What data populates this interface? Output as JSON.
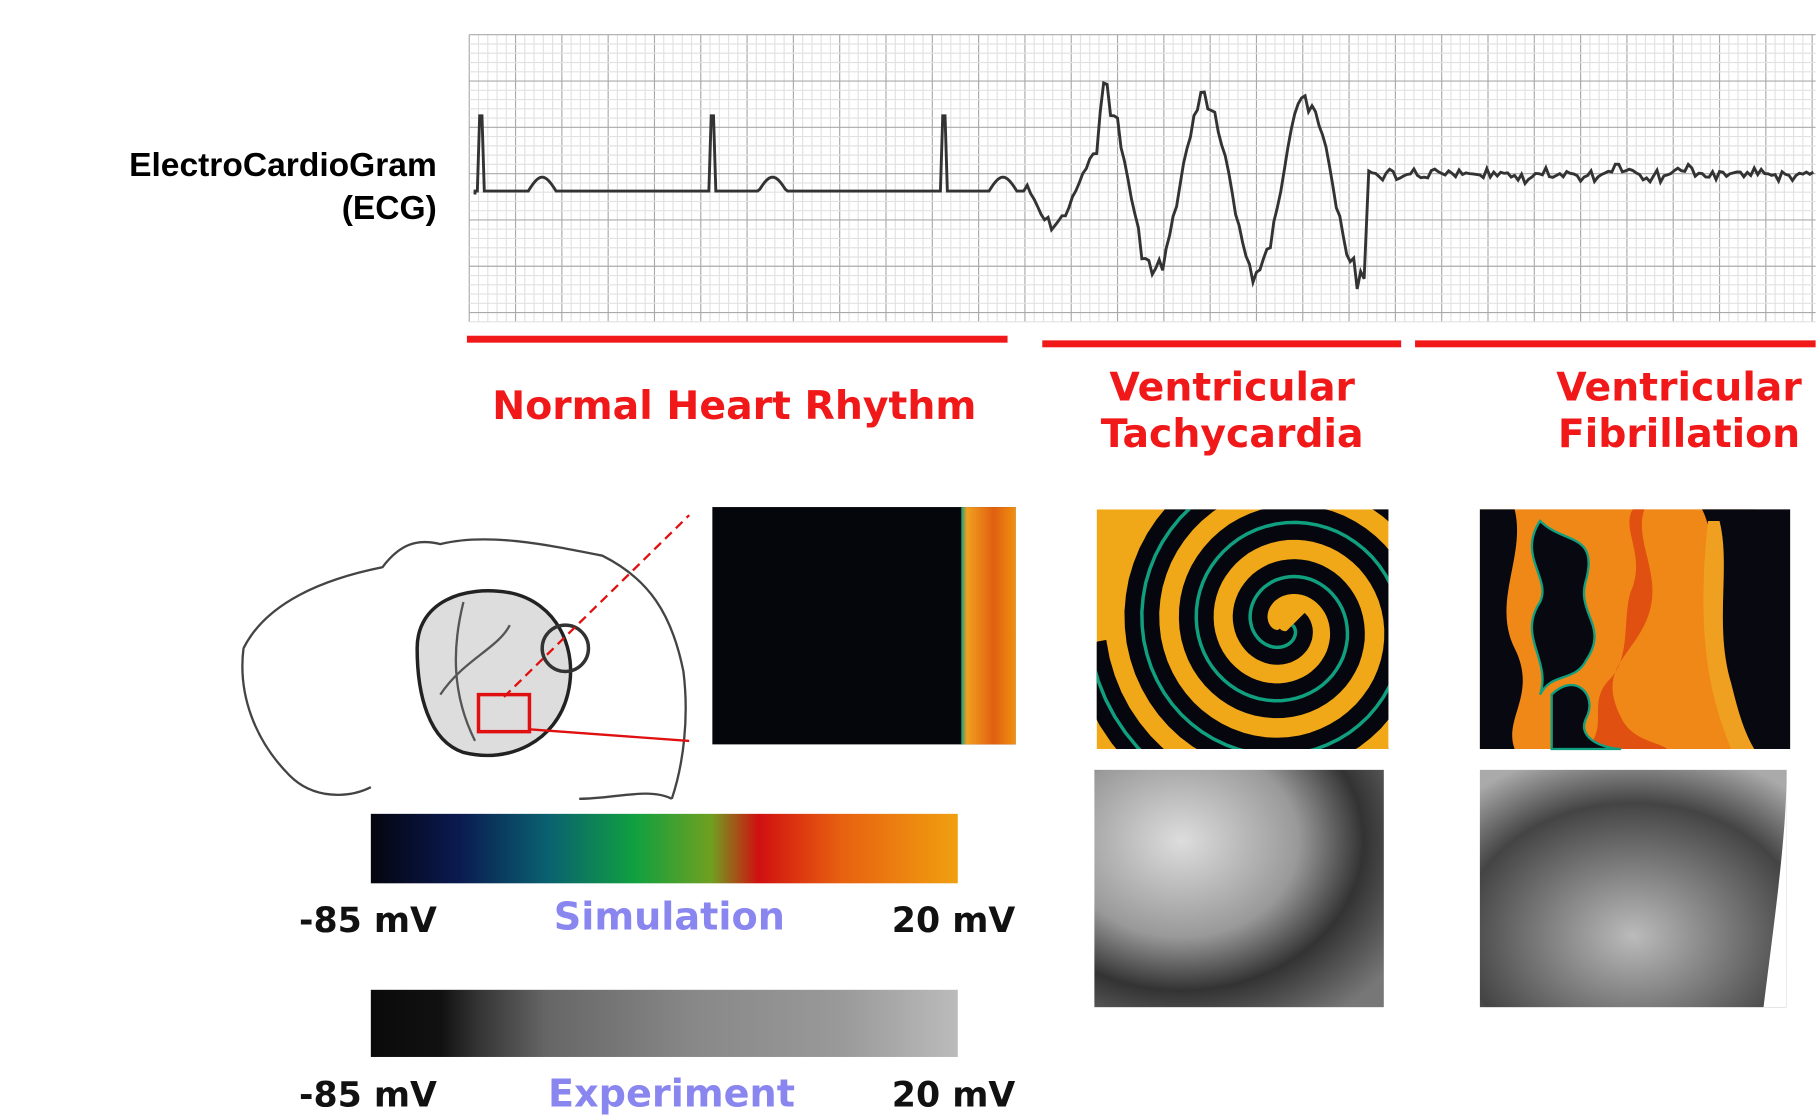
{
  "ecg_label": {
    "line1": "ElectroCardioGram",
    "line2": "(ECG)"
  },
  "rhythms": [
    {
      "label": [
        "Normal Heart Rhythm"
      ]
    },
    {
      "label": [
        "Ventricular",
        "Tachycardia"
      ]
    },
    {
      "label": [
        "Ventricular",
        "Fibrillation"
      ]
    }
  ],
  "scales": [
    {
      "min": "-85 mV",
      "name": "Simulation",
      "max": "20 mV"
    },
    {
      "min": "-85 mV",
      "name": "Experiment",
      "max": "20 mV"
    }
  ]
}
